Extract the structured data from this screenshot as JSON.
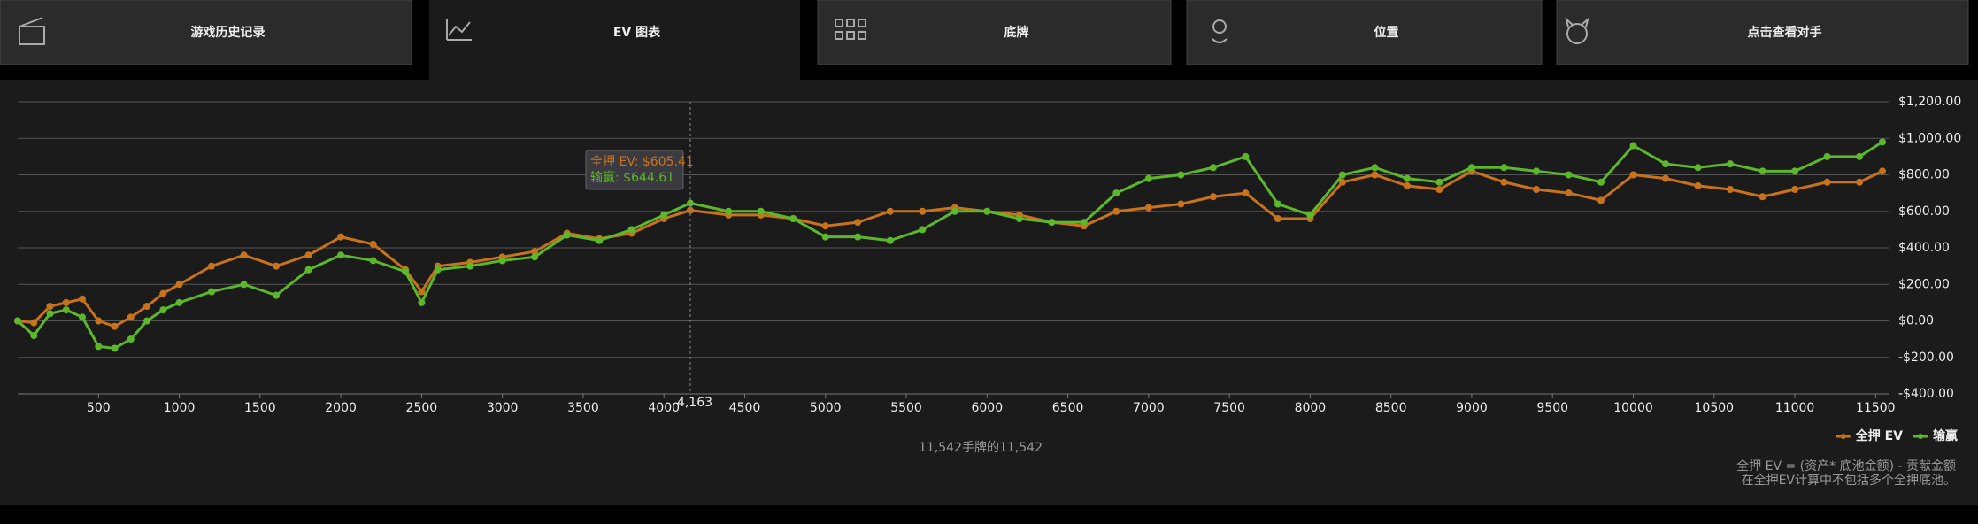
{
  "tabs": [
    "游戏历史记录",
    "EV 图表",
    "底牌",
    "位置",
    "点击查看对手"
  ],
  "active_tab": 1,
  "chart_data": {
    "type": "line",
    "x": [
      0,
      100,
      200,
      300,
      400,
      500,
      600,
      700,
      800,
      900,
      1000,
      1200,
      1400,
      1600,
      1800,
      2000,
      2200,
      2400,
      2500,
      2600,
      2800,
      3000,
      3200,
      3400,
      3600,
      3800,
      4000,
      4163,
      4400,
      4600,
      4800,
      5000,
      5200,
      5400,
      5600,
      5800,
      6000,
      6200,
      6400,
      6600,
      6800,
      7000,
      7200,
      7400,
      7600,
      7800,
      8000,
      8200,
      8400,
      8600,
      8800,
      9000,
      9200,
      9400,
      9600,
      9800,
      10000,
      10200,
      10400,
      10600,
      10800,
      11000,
      11200,
      11400,
      11542
    ],
    "series": [
      {
        "name": "全押 EV",
        "color": "#c8731b",
        "values": [
          0,
          -10,
          80,
          100,
          120,
          0,
          -30,
          20,
          80,
          150,
          200,
          300,
          360,
          300,
          360,
          460,
          420,
          280,
          160,
          300,
          320,
          350,
          380,
          480,
          450,
          480,
          560,
          605.41,
          580,
          580,
          560,
          520,
          540,
          600,
          600,
          620,
          600,
          580,
          540,
          520,
          600,
          620,
          640,
          680,
          700,
          560,
          560,
          760,
          800,
          740,
          720,
          820,
          760,
          720,
          700,
          660,
          800,
          780,
          740,
          720,
          680,
          720,
          760,
          760,
          820
        ]
      },
      {
        "name": "输赢",
        "color": "#5cb82a",
        "values": [
          0,
          -80,
          40,
          60,
          20,
          -140,
          -150,
          -100,
          0,
          60,
          100,
          160,
          200,
          140,
          280,
          360,
          330,
          270,
          100,
          280,
          300,
          330,
          350,
          470,
          440,
          500,
          580,
          644.61,
          600,
          600,
          560,
          460,
          460,
          440,
          500,
          600,
          600,
          560,
          540,
          540,
          700,
          780,
          800,
          840,
          900,
          640,
          580,
          800,
          840,
          780,
          760,
          840,
          840,
          820,
          800,
          760,
          960,
          860,
          840,
          860,
          820,
          820,
          900,
          900,
          980
        ]
      }
    ],
    "xlim": [
      0,
      11542
    ],
    "xticks": [
      500,
      1000,
      1500,
      2000,
      2500,
      3000,
      3500,
      4000,
      4500,
      5000,
      5500,
      6000,
      6500,
      7000,
      7500,
      8000,
      8500,
      9000,
      9500,
      10000,
      10500,
      11000,
      11500
    ],
    "ylim": [
      -400,
      1200
    ],
    "yticks": [
      {
        "value": -400,
        "label": "-$400.00"
      },
      {
        "value": -200,
        "label": "-$200.00"
      },
      {
        "value": 0,
        "label": "$0.00"
      },
      {
        "value": 200,
        "label": "$200.00"
      },
      {
        "value": 400,
        "label": "$400.00"
      },
      {
        "value": 600,
        "label": "$600.00"
      },
      {
        "value": 800,
        "label": "$800.00"
      },
      {
        "value": 1000,
        "label": "$1,000.00"
      },
      {
        "value": 1200,
        "label": "$1,200.00"
      }
    ],
    "grid": true,
    "legend": "bottom-right",
    "tooltip": {
      "x": {
        "value": 4163,
        "label": "4,163"
      },
      "lines": [
        "全押 EV: $605.41",
        "输赢: $644.61"
      ]
    },
    "caption": "11,542手牌的11,542",
    "notes": [
      "全押 EV = (资产* 底池金额) - 贡献金额",
      "在全押EV计算中不包括多个全押底池。"
    ]
  }
}
